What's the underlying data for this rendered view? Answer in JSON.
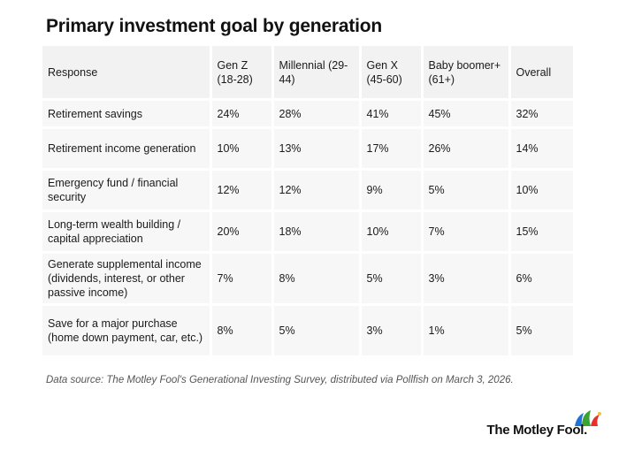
{
  "chart_data": {
    "type": "table",
    "title": "Primary investment goal by generation",
    "columns": [
      "Response",
      "Gen Z (18-28)",
      "Millennial (29-44)",
      "Gen X (45-60)",
      "Baby boomer+ (61+)",
      "Overall"
    ],
    "rows": [
      [
        "Retirement savings",
        "24%",
        "28%",
        "41%",
        "45%",
        "32%"
      ],
      [
        "Retirement income generation",
        "10%",
        "13%",
        "17%",
        "26%",
        "14%"
      ],
      [
        "Emergency fund / financial security",
        "12%",
        "12%",
        "9%",
        "5%",
        "10%"
      ],
      [
        "Long-term wealth building / capital appreciation",
        "20%",
        "18%",
        "10%",
        "7%",
        "15%"
      ],
      [
        "Generate supplemental income (dividends, interest, or other passive income)",
        "7%",
        "8%",
        "5%",
        "3%",
        "6%"
      ],
      [
        "Save for a major purchase (home down payment, car, etc.)",
        "8%",
        "5%",
        "3%",
        "1%",
        "5%"
      ]
    ],
    "source": "Data source: The Motley Fool's Generational Investing Survey, distributed via Pollfish on March 3, 2026."
  },
  "brand": {
    "name": "The Motley Fool.",
    "colors": {
      "green": "#3aa335",
      "blue": "#1e73d8",
      "red": "#e5332a",
      "yellow": "#f2c230"
    }
  }
}
